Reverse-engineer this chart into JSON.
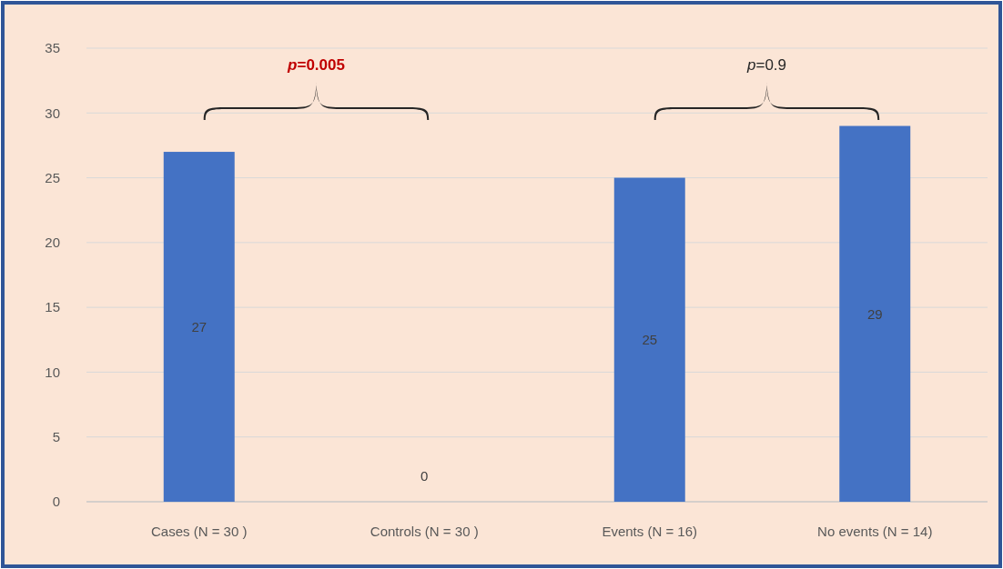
{
  "chart_data": {
    "type": "bar",
    "categories": [
      "Cases (N = 30 )",
      "Controls (N = 30 )",
      "Events (N = 16)",
      "No events (N = 14)"
    ],
    "values": [
      27,
      0,
      25,
      29
    ],
    "color": "#4472c4",
    "ylim": [
      0,
      35
    ],
    "yticks": [
      0,
      5,
      10,
      15,
      20,
      25,
      30,
      35
    ],
    "grid": "y",
    "data_labels": true,
    "annotations": [
      "p=0.005",
      "p=0.9"
    ]
  }
}
